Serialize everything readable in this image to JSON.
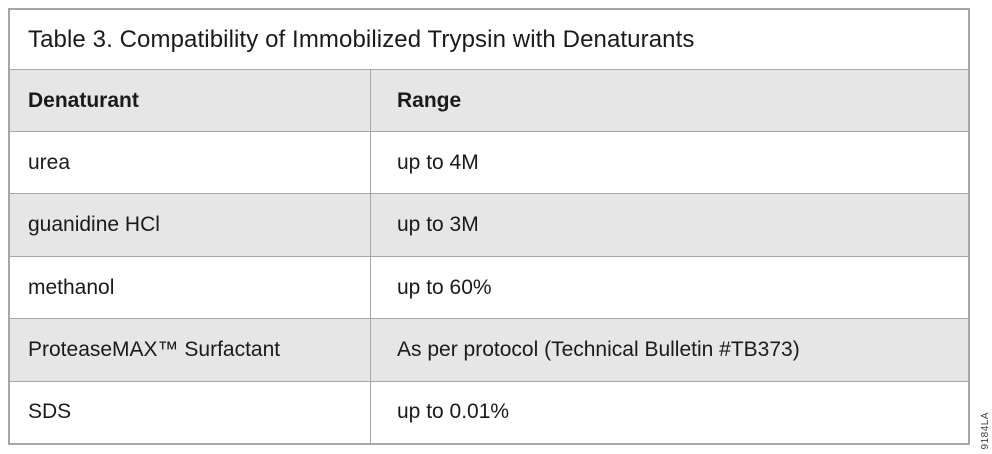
{
  "title": "Table 3. Compatibility of Immobilized Trypsin with Denaturants",
  "table": {
    "headers": {
      "denaturant": "Denaturant",
      "range": "Range"
    },
    "rows": [
      {
        "denaturant": "urea",
        "range": "up to 4M"
      },
      {
        "denaturant": "guanidine HCl",
        "range": "up to 3M"
      },
      {
        "denaturant": "methanol",
        "range": "up to 60%"
      },
      {
        "denaturant": "ProteaseMAX™ Surfactant",
        "range": "As per protocol (Technical Bulletin #TB373)"
      },
      {
        "denaturant": "SDS",
        "range": "up to 0.01%"
      }
    ]
  },
  "side_code": "9184LA",
  "colors": {
    "row_shade": "#e6e6e6",
    "border": "#a6a6a6",
    "text": "#1a1a1a"
  }
}
